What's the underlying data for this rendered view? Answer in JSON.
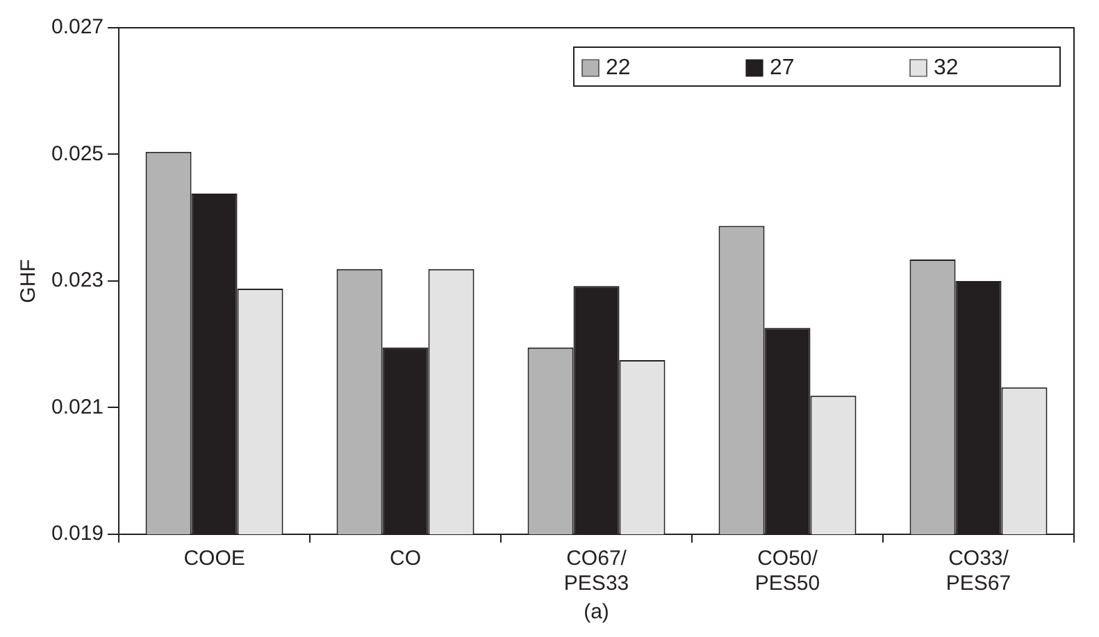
{
  "chart_data": {
    "type": "bar",
    "ylabel": "GHF",
    "categories": [
      "COOE",
      "CO",
      "CO67/PES33",
      "CO50/PES50",
      "CO33/PES67"
    ],
    "series": [
      {
        "name": "22",
        "color": "#b3b3b3",
        "values": [
          0.02504,
          0.02319,
          0.02195,
          0.02387,
          0.02334
        ]
      },
      {
        "name": "27",
        "color": "#231f20",
        "values": [
          0.02438,
          0.02195,
          0.02292,
          0.02226,
          0.023
        ]
      },
      {
        "name": "32",
        "color": "#e3e3e3",
        "values": [
          0.02288,
          0.02319,
          0.02175,
          0.02119,
          0.02132
        ]
      }
    ],
    "ylim": [
      0.019,
      0.027
    ],
    "yticks": [
      0.019,
      0.021,
      0.023,
      0.025,
      0.027
    ],
    "grid": false,
    "legend": "top right",
    "annotations": [
      "(a)"
    ]
  }
}
